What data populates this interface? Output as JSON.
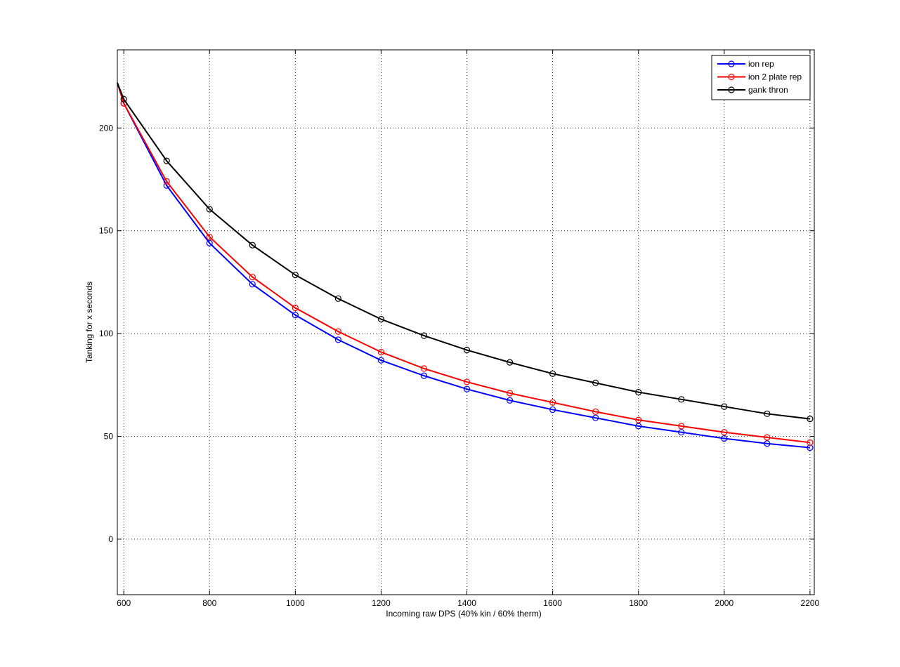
{
  "chart_data": {
    "type": "line",
    "title": "",
    "xlabel": "Incoming raw DPS (40% kin / 60% therm)",
    "ylabel": "Tanking for x seconds",
    "xlim": [
      585,
      2210
    ],
    "ylim": [
      -27,
      238
    ],
    "xticks": [
      600,
      800,
      1000,
      1200,
      1400,
      1600,
      1800,
      2000,
      2200
    ],
    "yticks": [
      0,
      50,
      100,
      150,
      200
    ],
    "grid": true,
    "grid_style": "dotted",
    "legend_position": "top-right",
    "x": [
      600,
      700,
      800,
      900,
      1000,
      1100,
      1200,
      1300,
      1400,
      1500,
      1600,
      1700,
      1800,
      1900,
      2000,
      2100,
      2200
    ],
    "series": [
      {
        "name": "ion rep",
        "color": "#0000ff",
        "marker": "circle",
        "left_edge_value": 222,
        "values": [
          212,
          172,
          144,
          124,
          109,
          97,
          87,
          79.5,
          73,
          67.5,
          63,
          59,
          55,
          52,
          49,
          46.5,
          44.5
        ]
      },
      {
        "name": "ion 2 plate rep",
        "color": "#ff0000",
        "marker": "circle",
        "left_edge_value": 222,
        "values": [
          212,
          174,
          147,
          127.5,
          112.5,
          101,
          91,
          83,
          76.5,
          71,
          66.5,
          62,
          58,
          55,
          52,
          49.5,
          47
        ]
      },
      {
        "name": "gank thron",
        "color": "#000000",
        "marker": "circle",
        "left_edge_value": 222,
        "values": [
          214,
          184,
          160.5,
          143,
          128.5,
          117,
          107,
          99,
          92,
          86,
          80.5,
          76,
          71.5,
          68,
          64.5,
          61,
          58.5
        ]
      }
    ]
  }
}
